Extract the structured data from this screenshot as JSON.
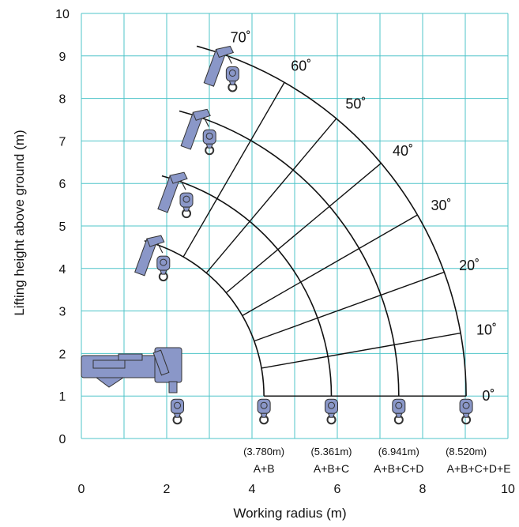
{
  "axes": {
    "x_label": "Working radius (m)",
    "y_label": "Lifting height above ground (m)",
    "x_ticks": [
      "0",
      "2",
      "4",
      "6",
      "8",
      "10"
    ],
    "y_ticks": [
      "0",
      "1",
      "2",
      "3",
      "4",
      "5",
      "6",
      "7",
      "8",
      "9",
      "10"
    ]
  },
  "angles": [
    {
      "value": 70,
      "label": "70˚"
    },
    {
      "value": 60,
      "label": "60˚"
    },
    {
      "value": 50,
      "label": "50˚"
    },
    {
      "value": 40,
      "label": "40˚"
    },
    {
      "value": 30,
      "label": "30˚"
    },
    {
      "value": 20,
      "label": "20˚"
    },
    {
      "value": 10,
      "label": "10˚"
    },
    {
      "value": 0,
      "label": "0˚"
    }
  ],
  "booms": [
    {
      "length_label": "(3.780m)",
      "sections": "A+B",
      "radius": 3.78
    },
    {
      "length_label": "(5.361m)",
      "sections": "A+B+C",
      "radius": 5.361
    },
    {
      "length_label": "(6.941m)",
      "sections": "A+B+C+D",
      "radius": 6.941
    },
    {
      "length_label": "(8.520m)",
      "sections": "A+B+C+D+E",
      "radius": 8.52
    }
  ],
  "pivot": {
    "x": 0.5,
    "y": 1.0
  },
  "x_range": [
    0,
    10
  ],
  "y_range": [
    0,
    10
  ],
  "colors": {
    "grid": "#4fc4c9",
    "boom": "#8a97c8",
    "line": "#111111"
  }
}
